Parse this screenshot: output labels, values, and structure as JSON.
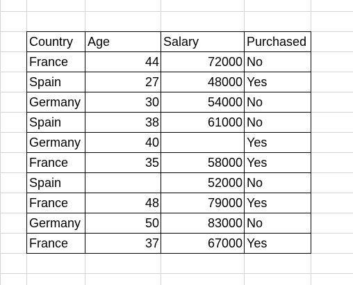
{
  "table": {
    "headers": [
      "Country",
      "Age",
      "Salary",
      "Purchased"
    ],
    "rows": [
      [
        "France",
        "44",
        "72000",
        "No"
      ],
      [
        "Spain",
        "27",
        "48000",
        "Yes"
      ],
      [
        "Germany",
        "30",
        "54000",
        "No"
      ],
      [
        "Spain",
        "38",
        "61000",
        "No"
      ],
      [
        "Germany",
        "40",
        "",
        "Yes"
      ],
      [
        "France",
        "35",
        "58000",
        "Yes"
      ],
      [
        "Spain",
        "",
        "52000",
        "No"
      ],
      [
        "France",
        "48",
        "79000",
        "Yes"
      ],
      [
        "Germany",
        "50",
        "83000",
        "No"
      ],
      [
        "France",
        "37",
        "67000",
        "Yes"
      ]
    ]
  }
}
